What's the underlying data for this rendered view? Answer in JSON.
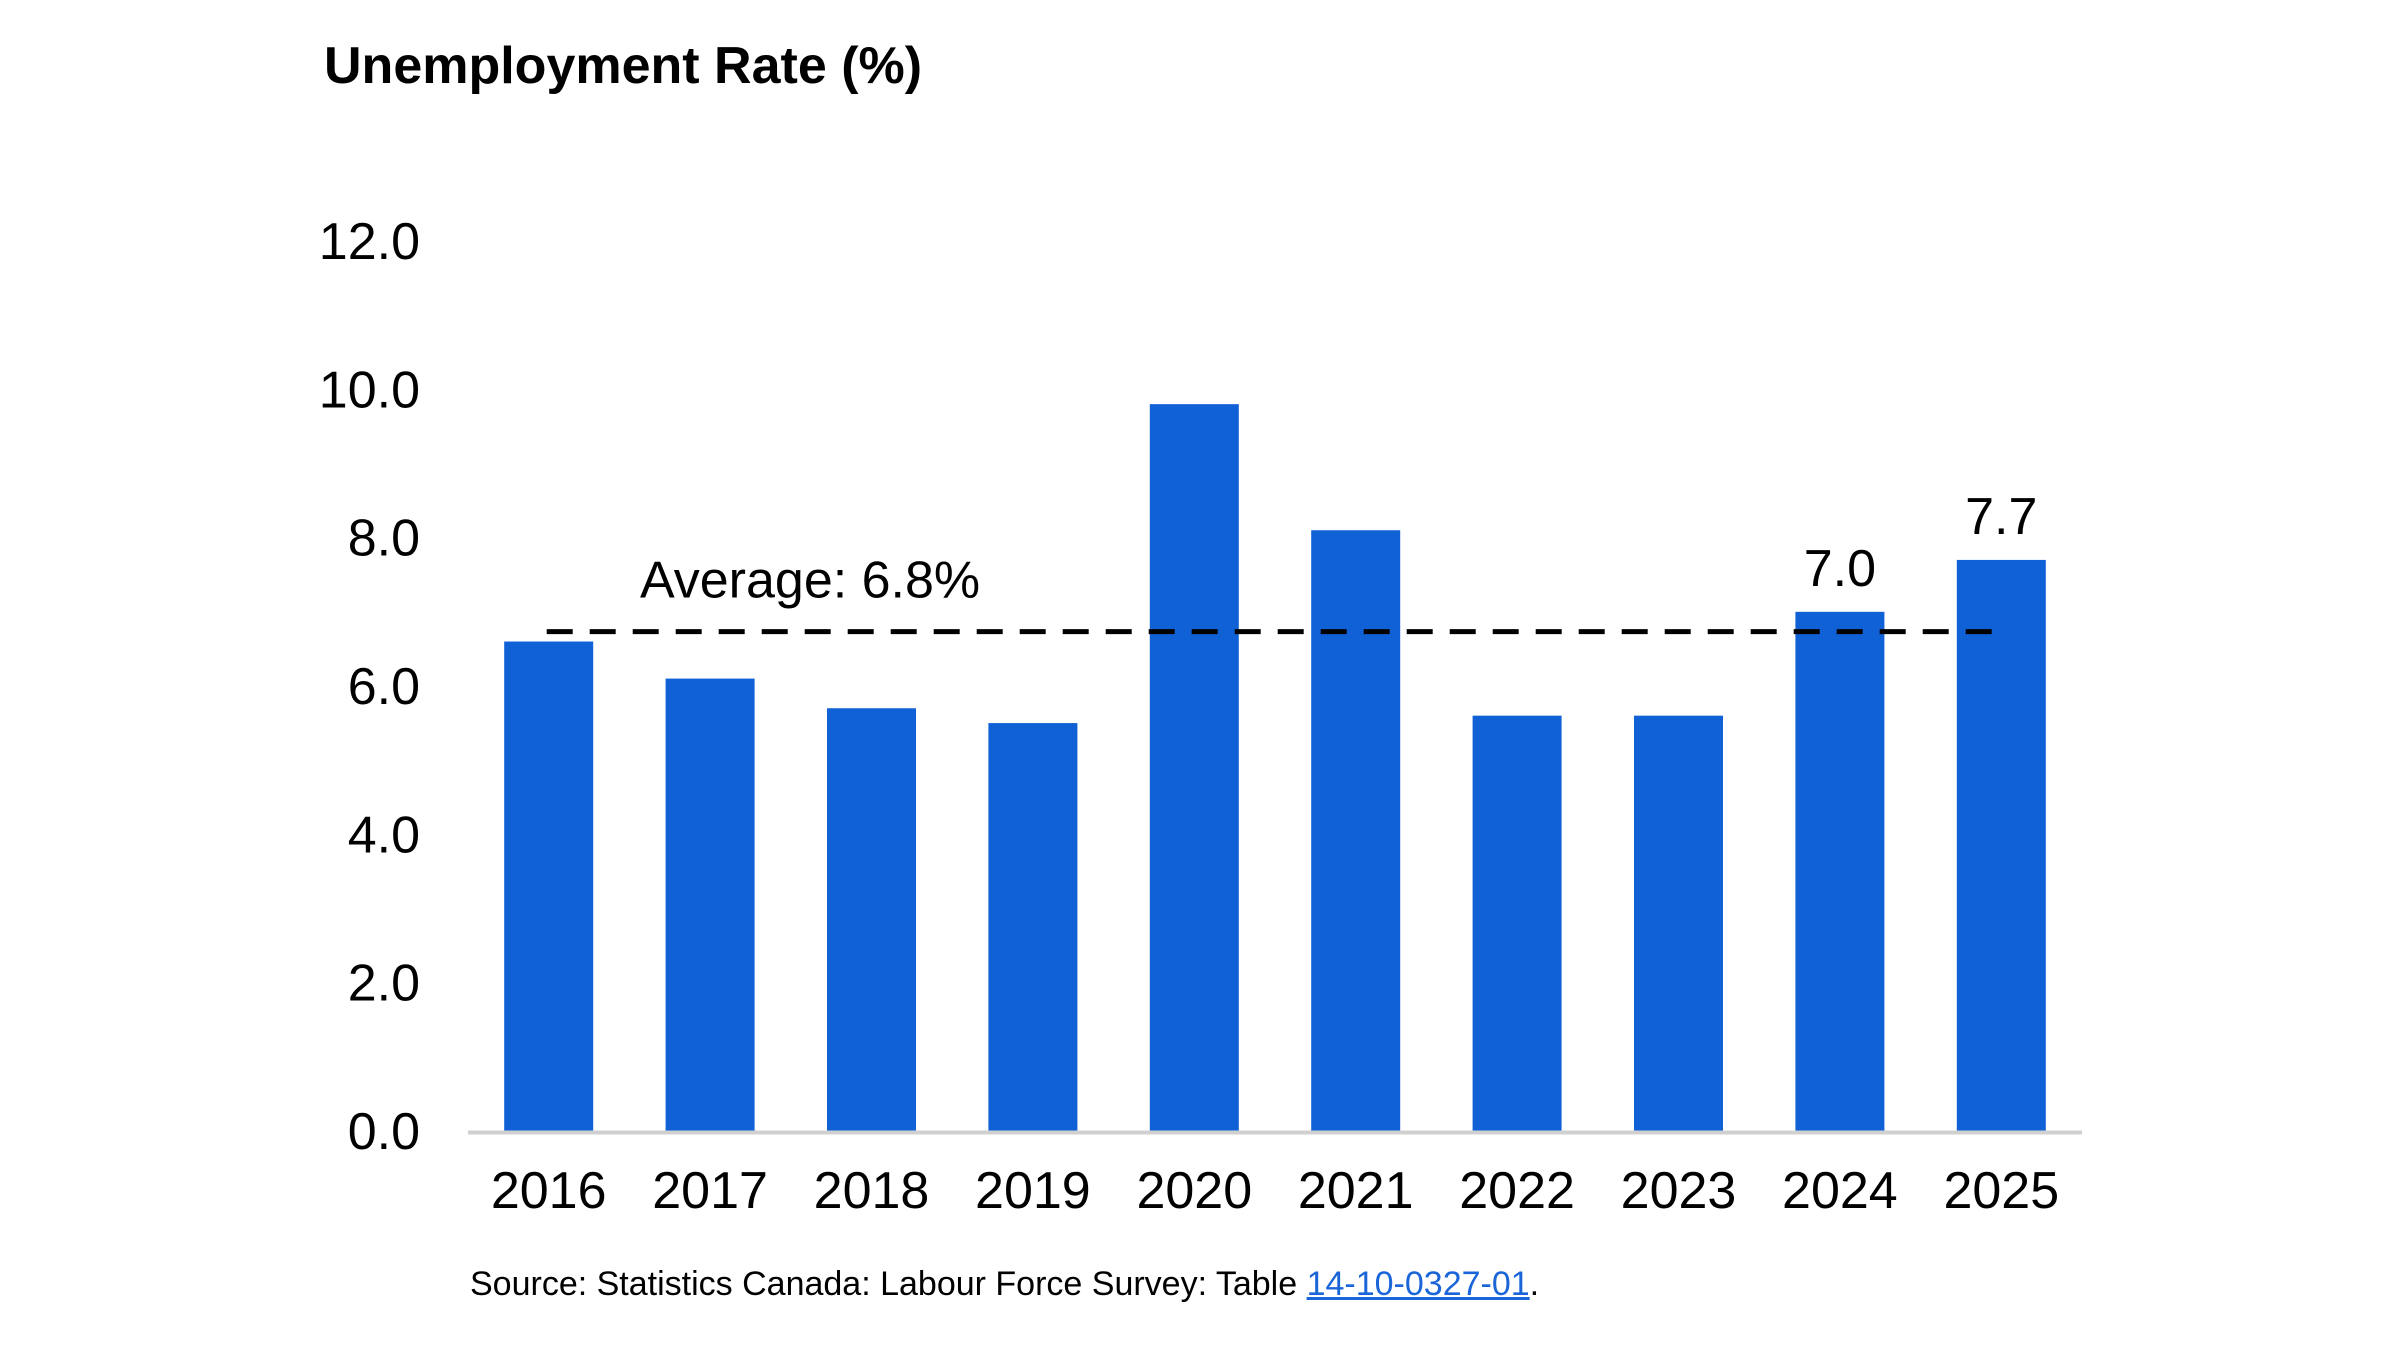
{
  "chart_data": {
    "type": "bar",
    "title": "Unemployment Rate (%)",
    "categories": [
      "2016",
      "2017",
      "2018",
      "2019",
      "2020",
      "2021",
      "2022",
      "2023",
      "2024",
      "2025"
    ],
    "values": [
      6.6,
      6.1,
      5.7,
      5.5,
      9.8,
      8.1,
      5.6,
      5.6,
      7.0,
      7.7
    ],
    "y_ticks": [
      "0.0",
      "2.0",
      "4.0",
      "6.0",
      "8.0",
      "10.0",
      "12.0"
    ],
    "ylim": [
      0,
      12
    ],
    "bar_color": "#1060d6",
    "grid": false,
    "data_labels": [
      {
        "category": "2024",
        "text": "7.0"
      },
      {
        "category": "2025",
        "text": "7.7"
      }
    ],
    "reference_line": {
      "value": 6.8,
      "label": "Average: 6.8%",
      "style": "dashed",
      "color": "#000000"
    }
  },
  "source": {
    "prefix": "Source: Statistics Canada: Labour Force Survey: Table ",
    "link_text": "14-10-0327-01",
    "suffix": "."
  }
}
